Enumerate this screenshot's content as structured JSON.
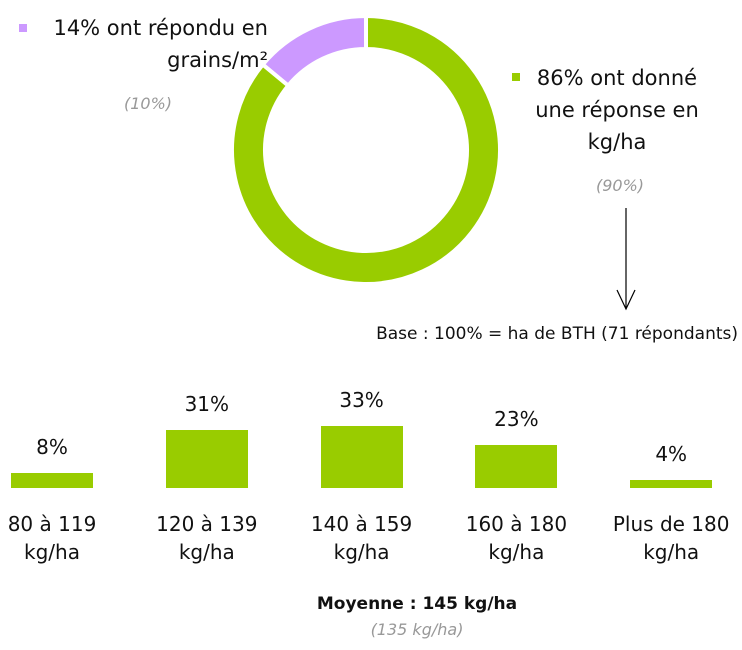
{
  "chart_data": [
    {
      "type": "pie",
      "hole": true,
      "values": [
        14,
        86
      ],
      "colors": [
        "#cc99ff",
        "#99cc00"
      ],
      "labels": [
        "14% ont répondu en grains/m²",
        "86% ont donné une réponse en kg/ha"
      ],
      "previous_labels": [
        "(10%)",
        "(90%)"
      ],
      "note": "Base : 100% = ha de BTH (71 répondants)"
    },
    {
      "type": "bar",
      "categories": [
        "80 à 119 kg/ha",
        "120 à 139 kg/ha",
        "140 à 159 kg/ha",
        "160 à 180 kg/ha",
        "Plus de 180 kg/ha"
      ],
      "values": [
        8,
        31,
        33,
        23,
        4
      ],
      "value_labels": [
        "8%",
        "31%",
        "33%",
        "23%",
        "4%"
      ],
      "color": "#99cc00",
      "annotation": "Moyenne : 145 kg/ha",
      "subannotation": "(135 kg/ha)"
    }
  ]
}
